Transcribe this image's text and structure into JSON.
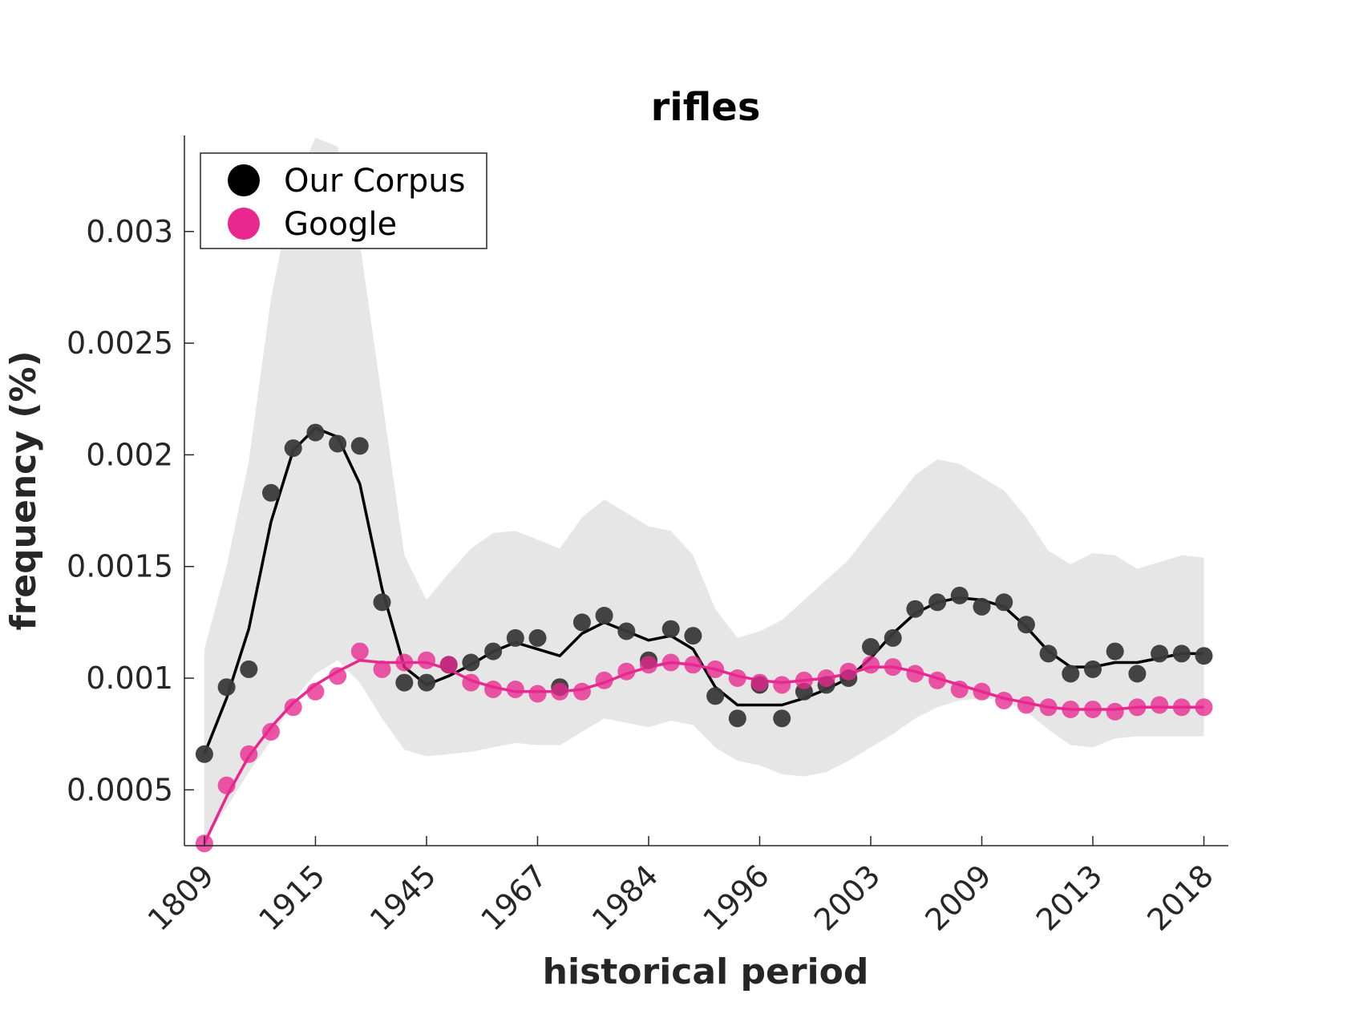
{
  "chart_data": {
    "type": "line",
    "title": "rifles",
    "xlabel": "historical period",
    "ylabel": "frequency (%)",
    "x_tick_labels": [
      "1809",
      "1915",
      "1945",
      "1967",
      "1984",
      "1996",
      "2003",
      "2009",
      "2013",
      "2018"
    ],
    "x_tick_positions": [
      1,
      6,
      11,
      16,
      21,
      26,
      31,
      36,
      41,
      46
    ],
    "xlim": [
      0.1,
      47.1
    ],
    "ylim": [
      0.00025,
      0.00343
    ],
    "y_ticks": [
      0.0005,
      0.001,
      0.0015,
      0.002,
      0.0025,
      0.003
    ],
    "y_tick_labels": [
      "0.0005",
      "0.001",
      "0.0015",
      "0.002",
      "0.0025",
      "0.003"
    ],
    "grid": false,
    "legend_position": "top-left",
    "band": {
      "x": [
        1,
        2,
        3,
        4,
        5,
        6,
        7,
        8,
        9,
        10,
        11,
        12,
        13,
        14,
        15,
        16,
        17,
        18,
        19,
        20,
        21,
        22,
        23,
        24,
        25,
        26,
        27,
        28,
        29,
        30,
        31,
        32,
        33,
        34,
        35,
        36,
        37,
        38,
        39,
        40,
        41,
        42,
        43,
        44,
        45,
        46
      ],
      "upper": [
        0.00113,
        0.0015,
        0.00197,
        0.0027,
        0.0032,
        0.00342,
        0.00338,
        0.00295,
        0.00225,
        0.00155,
        0.00135,
        0.00147,
        0.00158,
        0.00165,
        0.00166,
        0.00162,
        0.00158,
        0.00172,
        0.0018,
        0.00174,
        0.00168,
        0.00166,
        0.00155,
        0.00131,
        0.00118,
        0.00121,
        0.00126,
        0.00135,
        0.00144,
        0.00153,
        0.00166,
        0.00178,
        0.00191,
        0.00198,
        0.00196,
        0.0019,
        0.00184,
        0.00172,
        0.00157,
        0.00151,
        0.00156,
        0.00155,
        0.00149,
        0.00152,
        0.00155,
        0.00154
      ],
      "lower": [
        0.00028,
        0.00042,
        0.00058,
        0.00072,
        0.0009,
        0.00102,
        0.00108,
        0.00098,
        0.00082,
        0.00068,
        0.00065,
        0.00066,
        0.00067,
        0.00069,
        0.00071,
        0.0007,
        0.0007,
        0.00076,
        0.00082,
        0.0008,
        0.00078,
        0.00081,
        0.00079,
        0.00069,
        0.00063,
        0.00061,
        0.00057,
        0.00056,
        0.00058,
        0.00063,
        0.00069,
        0.00075,
        0.00082,
        0.00087,
        0.0009,
        0.00091,
        0.0009,
        0.00085,
        0.00077,
        0.0007,
        0.00069,
        0.00073,
        0.00074,
        0.00074,
        0.00074,
        0.00074
      ]
    },
    "series": [
      {
        "name": "Our Corpus",
        "color": "#000000",
        "marker_color": "#3a3a3a",
        "points": [
          0.00066,
          0.00096,
          0.00104,
          0.00183,
          0.00203,
          0.0021,
          0.00205,
          0.00204,
          0.00134,
          0.00098,
          0.00098,
          0.00106,
          0.00107,
          0.00112,
          0.00118,
          0.00118,
          0.00096,
          0.00125,
          0.00128,
          0.00121,
          0.00108,
          0.00122,
          0.00119,
          0.00092,
          0.00082,
          0.00097,
          0.00082,
          0.00094,
          0.00097,
          0.001,
          0.00114,
          0.00118,
          0.00131,
          0.00134,
          0.00137,
          0.00132,
          0.00134,
          0.00124,
          0.00111,
          0.00102,
          0.00104,
          0.00112,
          0.00102,
          0.00111,
          0.00111,
          0.0011
        ],
        "trend": [
          0.00066,
          0.00091,
          0.00122,
          0.0017,
          0.00202,
          0.00212,
          0.00208,
          0.00187,
          0.0014,
          0.00105,
          0.00097,
          0.00101,
          0.00106,
          0.00112,
          0.00116,
          0.00113,
          0.0011,
          0.0012,
          0.00125,
          0.00121,
          0.00117,
          0.00119,
          0.00113,
          0.00096,
          0.00088,
          0.00088,
          0.00088,
          0.00091,
          0.00095,
          0.001,
          0.00109,
          0.0012,
          0.00129,
          0.00134,
          0.00136,
          0.00135,
          0.00132,
          0.00123,
          0.00112,
          0.00105,
          0.00105,
          0.00107,
          0.00107,
          0.00109,
          0.00111,
          0.00111
        ]
      },
      {
        "name": "Google",
        "color": "#e8288f",
        "marker_color": "#e8288f",
        "points": [
          0.00026,
          0.00052,
          0.00066,
          0.00076,
          0.00087,
          0.00094,
          0.00101,
          0.00112,
          0.00104,
          0.00107,
          0.00108,
          0.00106,
          0.00098,
          0.00095,
          0.00095,
          0.00093,
          0.00094,
          0.00094,
          0.00099,
          0.00103,
          0.00106,
          0.00107,
          0.00106,
          0.00104,
          0.001,
          0.00098,
          0.00097,
          0.00099,
          0.001,
          0.00103,
          0.00106,
          0.00105,
          0.00102,
          0.00099,
          0.00095,
          0.00094,
          0.0009,
          0.00088,
          0.00087,
          0.00086,
          0.00086,
          0.00085,
          0.00087,
          0.00088,
          0.00087,
          0.00087
        ],
        "trend": [
          0.00026,
          0.00047,
          0.00065,
          0.00078,
          0.00089,
          0.00097,
          0.00103,
          0.00108,
          0.00107,
          0.00107,
          0.00107,
          0.00104,
          0.00099,
          0.00096,
          0.00094,
          0.00094,
          0.00094,
          0.00095,
          0.00098,
          0.00102,
          0.00105,
          0.00107,
          0.00106,
          0.00104,
          0.00101,
          0.00099,
          0.00098,
          0.00099,
          0.001,
          0.00102,
          0.00105,
          0.00105,
          0.00103,
          0.001,
          0.00097,
          0.00094,
          0.00091,
          0.00089,
          0.00087,
          0.00086,
          0.00086,
          0.00086,
          0.00087,
          0.00087,
          0.00087,
          0.00087
        ]
      }
    ]
  }
}
